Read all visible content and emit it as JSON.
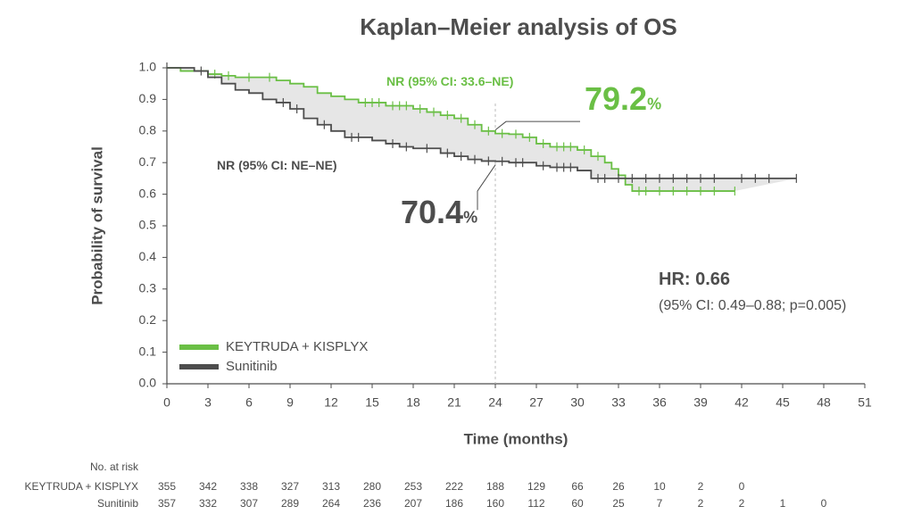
{
  "chart_data": {
    "type": "step",
    "title": "Kaplan–Meier analysis of OS",
    "xlabel": "Time (months)",
    "ylabel": "Probability of survival",
    "xlim": [
      0,
      51
    ],
    "xticks": [
      0,
      3,
      6,
      9,
      12,
      15,
      18,
      21,
      24,
      27,
      30,
      33,
      36,
      39,
      42,
      45,
      48,
      51
    ],
    "ylim": [
      0,
      1
    ],
    "yticks": [
      {
        "value": 0,
        "label": "0.0"
      },
      0.1,
      0.2,
      0.3,
      0.4,
      0.5,
      0.6,
      0.7,
      0.8,
      0.9,
      {
        "value": 1,
        "label": "1.0"
      }
    ],
    "vline": 24,
    "series": [
      {
        "name": "KEYTRUDA + KISPLYX",
        "color": "#6abf45",
        "x": [
          0,
          1,
          3,
          4,
          5,
          8,
          9,
          10,
          11,
          12,
          13,
          14,
          16,
          18,
          19,
          20,
          21,
          22,
          23,
          24,
          25,
          26,
          27,
          28,
          30,
          31,
          32,
          32.5,
          33,
          33.5,
          34,
          41.5
        ],
        "values": [
          1.0,
          0.99,
          0.98,
          0.975,
          0.97,
          0.96,
          0.95,
          0.94,
          0.92,
          0.91,
          0.9,
          0.89,
          0.88,
          0.87,
          0.86,
          0.85,
          0.84,
          0.82,
          0.8,
          0.792,
          0.79,
          0.78,
          0.76,
          0.75,
          0.74,
          0.72,
          0.7,
          0.68,
          0.66,
          0.63,
          0.61,
          0.61
        ],
        "censored": [
          3.5,
          4.5,
          6,
          7.5,
          14.5,
          15,
          15.5,
          16.5,
          17,
          17.5,
          18.5,
          19.5,
          20.5,
          21.5,
          22.5,
          23.5,
          24.5,
          25.5,
          26.5,
          27.5,
          28.5,
          29,
          29.5,
          30.5,
          31.5,
          34.5,
          35,
          36,
          37,
          38,
          39,
          40,
          41.5
        ]
      },
      {
        "name": "Sunitinib",
        "color": "#4d4d4d",
        "x": [
          0,
          2,
          3,
          4,
          5,
          6,
          7,
          8,
          9,
          10,
          11,
          12,
          13,
          15,
          16,
          17,
          18,
          20,
          21,
          22,
          23,
          24,
          25,
          27,
          28,
          30,
          31,
          46
        ],
        "values": [
          1.0,
          0.99,
          0.97,
          0.95,
          0.93,
          0.92,
          0.9,
          0.89,
          0.87,
          0.84,
          0.82,
          0.8,
          0.78,
          0.77,
          0.76,
          0.75,
          0.745,
          0.73,
          0.72,
          0.71,
          0.705,
          0.704,
          0.7,
          0.69,
          0.685,
          0.675,
          0.65,
          0.65
        ],
        "censored": [
          2.5,
          8.5,
          9.5,
          11.5,
          13.5,
          14,
          16.5,
          17.5,
          19,
          20.5,
          21.5,
          22.5,
          23.5,
          24.5,
          25.5,
          26,
          27.5,
          28.5,
          29,
          29.5,
          31.5,
          32,
          33,
          34,
          35,
          36,
          37,
          38,
          39,
          40,
          42,
          43,
          44,
          46
        ]
      }
    ],
    "annotations": [
      {
        "text": "NR (95% CI: 33.6–NE)",
        "color": "#6abf45"
      },
      {
        "text": "79.2",
        "unit": "%",
        "color": "#6abf45"
      },
      {
        "text": "NR (95% CI: NE–NE)",
        "color": "#4d4d4d"
      },
      {
        "text": "70.4",
        "unit": "%",
        "color": "#4d4d4d"
      },
      {
        "text": "HR: 0.66",
        "color": "#4d4d4d"
      },
      {
        "text": "(95% CI: 0.49–0.88; p=0.005)",
        "color": "#4d4d4d"
      }
    ],
    "risk_table": {
      "title": "No. at risk",
      "times": [
        0,
        3,
        6,
        9,
        12,
        15,
        18,
        21,
        24,
        27,
        30,
        33,
        36,
        39,
        42,
        45,
        48
      ],
      "rows": [
        {
          "name": "KEYTRUDA + KISPLYX",
          "values": [
            355,
            342,
            338,
            327,
            313,
            280,
            253,
            222,
            188,
            129,
            66,
            26,
            10,
            2,
            0,
            null,
            null
          ]
        },
        {
          "name": "Sunitinib",
          "values": [
            357,
            332,
            307,
            289,
            264,
            236,
            207,
            186,
            160,
            112,
            60,
            25,
            7,
            2,
            2,
            1,
            0
          ]
        }
      ]
    }
  }
}
